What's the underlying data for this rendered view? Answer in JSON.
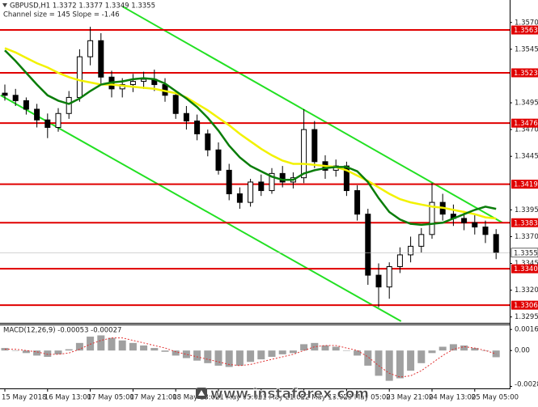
{
  "chart_data": [
    {
      "type": "candlestick",
      "title": "GBPUSD,H1  1.3372 1.3377 1.3349 1.3355",
      "subtitle": "Channel size = 145 Slope = -1.46",
      "ylim": [
        1.3291,
        1.3591
      ],
      "yticks": [
        {
          "value": 1.357,
          "label": "1.3570"
        },
        {
          "value": 1.3545,
          "label": "1.3545"
        },
        {
          "value": 1.3495,
          "label": "1.3495"
        },
        {
          "value": 1.347,
          "label": "1.3470"
        },
        {
          "value": 1.3445,
          "label": "1.3445"
        },
        {
          "value": 1.3395,
          "label": "1.3395"
        },
        {
          "value": 1.337,
          "label": "1.3370"
        },
        {
          "value": 1.3345,
          "label": "1.3345"
        },
        {
          "value": 1.332,
          "label": "1.3320"
        },
        {
          "value": 1.3295,
          "label": "1.3295"
        }
      ],
      "levels": [
        {
          "value": 1.3563,
          "label": "1.3563"
        },
        {
          "value": 1.3523,
          "label": "1.3523"
        },
        {
          "value": 1.3476,
          "label": "1.3476"
        },
        {
          "value": 1.3419,
          "label": "1.3419"
        },
        {
          "value": 1.3383,
          "label": "1.3383"
        },
        {
          "value": 1.334,
          "label": "1.3340"
        },
        {
          "value": 1.3306,
          "label": "1.3306"
        }
      ],
      "level_color": "#e00000",
      "current_price": {
        "value": 1.3355,
        "label": "1.3355"
      },
      "xticks": [
        {
          "value": 0,
          "label": "15 May 2018"
        },
        {
          "value": 4,
          "label": "16 May 13:00"
        },
        {
          "value": 8,
          "label": "17 May 05:00"
        },
        {
          "value": 12,
          "label": "17 May 21:00"
        },
        {
          "value": 16,
          "label": "18 May 13:00"
        },
        {
          "value": 20,
          "label": "21 May 05:00"
        },
        {
          "value": 24,
          "label": "21 May 21:00"
        },
        {
          "value": 28,
          "label": "22 May 13:00"
        },
        {
          "value": 32,
          "label": "23 May 05:00"
        },
        {
          "value": 36,
          "label": "23 May 21:00"
        },
        {
          "value": 40,
          "label": "24 May 13:00"
        },
        {
          "value": 44,
          "label": "25 May 05:00"
        }
      ],
      "open": [
        1.3504,
        1.3502,
        1.3497,
        1.3489,
        1.3479,
        1.3472,
        1.3485,
        1.35,
        1.3538,
        1.3553,
        1.3519,
        1.3508,
        1.3512,
        1.3515,
        1.3517,
        1.3512,
        1.3502,
        1.3485,
        1.3478,
        1.3466,
        1.3451,
        1.3432,
        1.341,
        1.3402,
        1.3421,
        1.3413,
        1.3429,
        1.3421,
        1.3425,
        1.347,
        1.344,
        1.3432,
        1.3436,
        1.3413,
        1.3391,
        1.3334,
        1.3323,
        1.3342,
        1.3353,
        1.3361,
        1.3372,
        1.3402,
        1.3391,
        1.3387,
        1.3383,
        1.3379,
        1.3372
      ],
      "high": [
        1.3512,
        1.3508,
        1.35,
        1.3494,
        1.3485,
        1.349,
        1.3506,
        1.3545,
        1.3566,
        1.356,
        1.3525,
        1.3518,
        1.3522,
        1.3524,
        1.3526,
        1.3518,
        1.3506,
        1.3492,
        1.3484,
        1.347,
        1.3458,
        1.3438,
        1.3416,
        1.3424,
        1.3428,
        1.3434,
        1.3436,
        1.343,
        1.3489,
        1.3478,
        1.3446,
        1.3442,
        1.344,
        1.3418,
        1.3396,
        1.3345,
        1.3346,
        1.336,
        1.337,
        1.3378,
        1.342,
        1.341,
        1.34,
        1.3394,
        1.339,
        1.3385,
        1.3377
      ],
      "low": [
        1.3497,
        1.3492,
        1.3484,
        1.3472,
        1.3462,
        1.3468,
        1.348,
        1.3496,
        1.353,
        1.3512,
        1.35,
        1.35,
        1.3505,
        1.3508,
        1.3506,
        1.3496,
        1.348,
        1.347,
        1.346,
        1.3445,
        1.3428,
        1.3404,
        1.3396,
        1.3398,
        1.3408,
        1.341,
        1.3416,
        1.3415,
        1.342,
        1.3434,
        1.3424,
        1.3426,
        1.3408,
        1.3385,
        1.3325,
        1.3304,
        1.3312,
        1.3336,
        1.3346,
        1.3355,
        1.3368,
        1.3385,
        1.338,
        1.3376,
        1.3372,
        1.3364,
        1.3349
      ],
      "close": [
        1.3502,
        1.3497,
        1.3489,
        1.3479,
        1.3472,
        1.3485,
        1.35,
        1.3538,
        1.3553,
        1.3519,
        1.3508,
        1.3512,
        1.3515,
        1.3517,
        1.3512,
        1.3502,
        1.3485,
        1.3478,
        1.3466,
        1.3451,
        1.3432,
        1.341,
        1.3402,
        1.3421,
        1.3413,
        1.3429,
        1.3421,
        1.3425,
        1.347,
        1.344,
        1.3432,
        1.3436,
        1.3413,
        1.3391,
        1.3334,
        1.3323,
        1.3342,
        1.3353,
        1.3361,
        1.3372,
        1.3402,
        1.3391,
        1.3387,
        1.3383,
        1.3379,
        1.3372,
        1.3355
      ],
      "series": [
        {
          "color": "#f2f200",
          "values": [
            1.3546,
            1.3542,
            1.3537,
            1.3532,
            1.3528,
            1.3523,
            1.3519,
            1.3516,
            1.3514,
            1.3512,
            1.3512,
            1.3511,
            1.351,
            1.3509,
            1.3508,
            1.3506,
            1.3504,
            1.35,
            1.3494,
            1.3488,
            1.3481,
            1.3474,
            1.3466,
            1.3459,
            1.3452,
            1.3446,
            1.3441,
            1.3438,
            1.3438,
            1.3437,
            1.3436,
            1.3435,
            1.3432,
            1.3427,
            1.3422,
            1.3416,
            1.341,
            1.3405,
            1.3402,
            1.34,
            1.3398,
            1.3397,
            1.3395,
            1.3393,
            1.3391,
            1.3388,
            1.3387
          ]
        },
        {
          "color": "#0a7d0a",
          "values": [
            1.3544,
            1.3534,
            1.3523,
            1.3512,
            1.3502,
            1.3497,
            1.3494,
            1.3499,
            1.3506,
            1.3512,
            1.3514,
            1.3515,
            1.3517,
            1.3518,
            1.3517,
            1.3513,
            1.3506,
            1.3499,
            1.3491,
            1.3481,
            1.3469,
            1.3455,
            1.3444,
            1.3436,
            1.3431,
            1.3426,
            1.3423,
            1.3423,
            1.3429,
            1.3432,
            1.3434,
            1.3435,
            1.3435,
            1.3431,
            1.3421,
            1.3406,
            1.3393,
            1.3386,
            1.3382,
            1.3381,
            1.3382,
            1.3383,
            1.3387,
            1.3391,
            1.3395,
            1.3398,
            1.3396
          ]
        }
      ],
      "channels": [
        {
          "color": "#22e022",
          "x": [
            11,
            46.6
          ],
          "values": [
            1.3585,
            1.3383
          ]
        },
        {
          "color": "#22e022",
          "x": [
            -0.4,
            37.1
          ],
          "values": [
            1.3502,
            1.3291
          ]
        }
      ]
    },
    {
      "type": "macd",
      "title": "MACD(12,26,9) -0.00053 -0.00027",
      "ylim": [
        -0.003,
        0.002
      ],
      "yticks": [
        {
          "value": 0.00167,
          "label": "0.00167"
        },
        {
          "value": 0,
          "label": "0.00"
        },
        {
          "value": -0.00284,
          "label": "-0.00284"
        }
      ],
      "color": "#a0a0a0",
      "signal_color": "#e03030",
      "values": [
        0.0002,
        0,
        -0.0002,
        -0.0004,
        -0.0005,
        -0.0003,
        0.0001,
        0.0006,
        0.0011,
        0.0012,
        0.001,
        0.0008,
        0.0006,
        0.0004,
        0.0002,
        -0.0001,
        -0.0004,
        -0.0006,
        -0.0008,
        -0.001,
        -0.0012,
        -0.0013,
        -0.0012,
        -0.0009,
        -0.0007,
        -0.0005,
        -0.0003,
        -0.0002,
        0.0005,
        0.0006,
        0.0004,
        0.0003,
        0,
        -0.0004,
        -0.0012,
        -0.002,
        -0.0024,
        -0.0022,
        -0.0016,
        -0.001,
        -0.0002,
        0.0003,
        0.0005,
        0.0004,
        0.0002,
        0,
        -0.00053
      ],
      "signal": [
        0.0001,
        0.0001,
        0,
        -0.0001,
        -0.0003,
        -0.0003,
        -0.0002,
        0.0001,
        0.0005,
        0.0008,
        0.001,
        0.001,
        0.0008,
        0.0006,
        0.0004,
        0.0002,
        -0.0001,
        -0.0003,
        -0.0005,
        -0.0007,
        -0.0009,
        -0.0011,
        -0.0012,
        -0.0011,
        -0.0009,
        -0.0007,
        -0.0005,
        -0.0003,
        0,
        0.0003,
        0.0004,
        0.0004,
        0.0002,
        0,
        -0.0005,
        -0.0012,
        -0.0018,
        -0.0021,
        -0.002,
        -0.0016,
        -0.001,
        -0.0004,
        0.0001,
        0.0003,
        0.0002,
        0,
        -0.00027
      ]
    }
  ],
  "watermark": "www.instaforex.com"
}
